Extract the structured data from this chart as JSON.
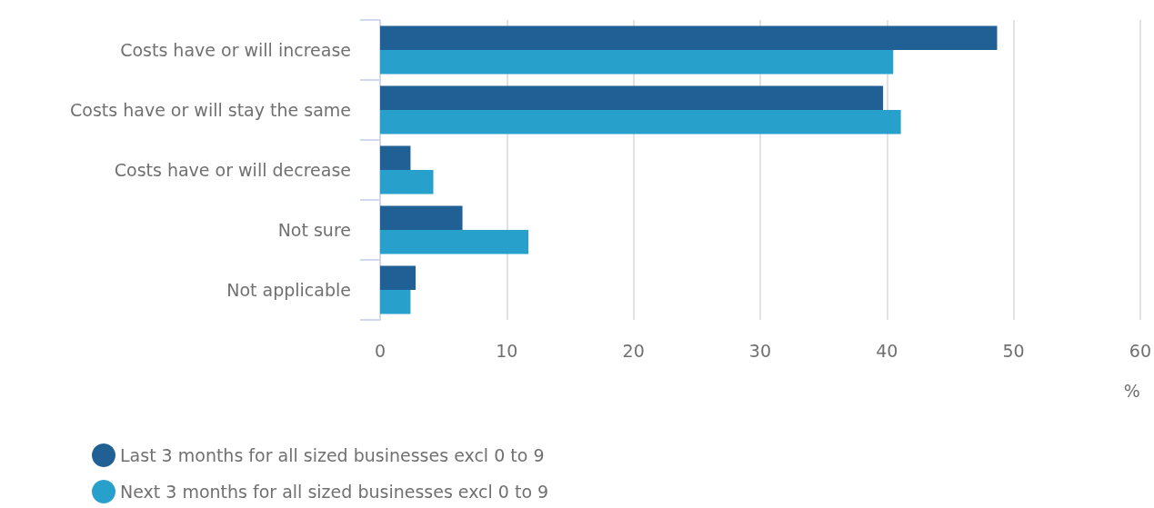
{
  "chart_data": {
    "type": "bar",
    "orientation": "horizontal",
    "xlabel": "%",
    "categories": [
      "Costs have or will increase",
      "Costs have or will stay the same",
      "Costs have or will decrease",
      "Not sure",
      "Not applicable"
    ],
    "series": [
      {
        "name": "Last 3 months for all sized businesses excl 0 to 9",
        "color": "#206095",
        "values": [
          48.7,
          39.7,
          2.4,
          6.5,
          2.8
        ]
      },
      {
        "name": "Next 3 months for all sized businesses excl 0 to 9",
        "color": "#27a0cc",
        "values": [
          40.5,
          41.1,
          4.2,
          11.7,
          2.4
        ]
      }
    ],
    "xlim": [
      0,
      60
    ],
    "xticks": [
      0,
      10,
      20,
      30,
      40,
      50,
      60
    ],
    "grid": "x",
    "legend": "bottom left"
  }
}
